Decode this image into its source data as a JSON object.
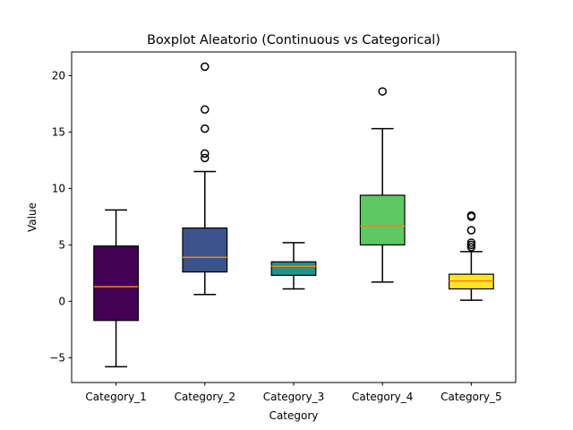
{
  "chart_data": {
    "type": "boxplot",
    "title": "Boxplot Aleatorio (Continuous vs Categorical)",
    "xlabel": "Category",
    "ylabel": "Value",
    "ylim": [
      -7.2,
      22.1
    ],
    "yticks": [
      -5,
      0,
      5,
      10,
      15,
      20
    ],
    "ytick_labels": [
      "−5",
      "0",
      "5",
      "10",
      "15",
      "20"
    ],
    "grid": false,
    "legend": "none",
    "median_color": "#ff7f0e",
    "categories": [
      "Category_1",
      "Category_2",
      "Category_3",
      "Category_4",
      "Category_5"
    ],
    "boxes": [
      {
        "category": "Category_1",
        "color": "#440154",
        "whisker_low": -5.8,
        "q1": -1.7,
        "median": 1.3,
        "q3": 4.9,
        "whisker_high": 8.1,
        "outliers": []
      },
      {
        "category": "Category_2",
        "color": "#3b528b",
        "whisker_low": 0.6,
        "q1": 2.6,
        "median": 3.9,
        "q3": 6.5,
        "whisker_high": 11.5,
        "outliers": [
          12.7,
          13.1,
          15.3,
          17.0,
          20.8
        ]
      },
      {
        "category": "Category_3",
        "color": "#21918c",
        "whisker_low": 1.1,
        "q1": 2.3,
        "median": 3.1,
        "q3": 3.5,
        "whisker_high": 5.2,
        "outliers": []
      },
      {
        "category": "Category_4",
        "color": "#5ec962",
        "whisker_low": 1.7,
        "q1": 5.0,
        "median": 6.7,
        "q3": 9.4,
        "whisker_high": 15.3,
        "outliers": [
          18.6
        ]
      },
      {
        "category": "Category_5",
        "color": "#fde725",
        "whisker_low": 0.1,
        "q1": 1.1,
        "median": 1.8,
        "q3": 2.4,
        "whisker_high": 4.4,
        "outliers": [
          4.8,
          5.0,
          5.2,
          6.3,
          7.5,
          7.6
        ]
      }
    ]
  }
}
